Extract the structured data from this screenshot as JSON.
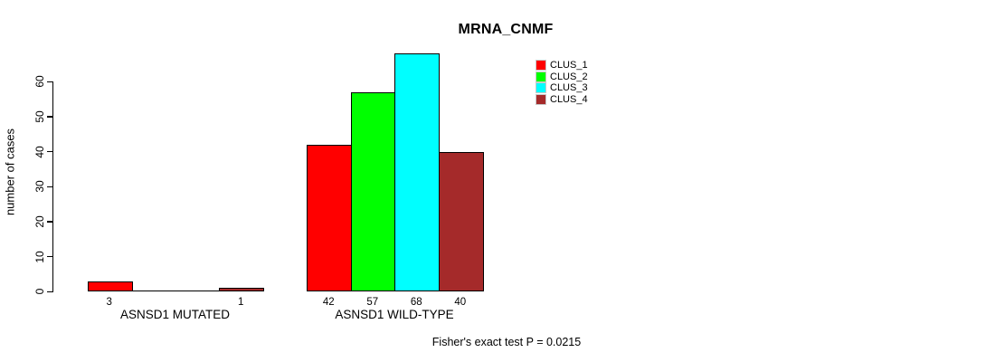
{
  "chart_data": {
    "type": "bar",
    "title": "MRNA_CNMF",
    "ylabel": "number of cases",
    "yticks": [
      0,
      10,
      20,
      30,
      40,
      50,
      60
    ],
    "ylim": [
      0,
      68
    ],
    "grid": false,
    "legend_position": "top-right-inside",
    "value_labels": "shown under each non-zero bar",
    "categories": [
      "ASNSD1 MUTATED",
      "ASNSD1 WILD-TYPE"
    ],
    "series": [
      {
        "name": "CLUS_1",
        "color": "#ff0000",
        "values": [
          3,
          42
        ]
      },
      {
        "name": "CLUS_2",
        "color": "#00ff00",
        "values": [
          0,
          57
        ]
      },
      {
        "name": "CLUS_3",
        "color": "#00ffff",
        "values": [
          0,
          68
        ]
      },
      {
        "name": "CLUS_4",
        "color": "#a52a2a",
        "values": [
          1,
          40
        ]
      }
    ],
    "annotation": "Fisher's exact test P = 0.0215"
  }
}
